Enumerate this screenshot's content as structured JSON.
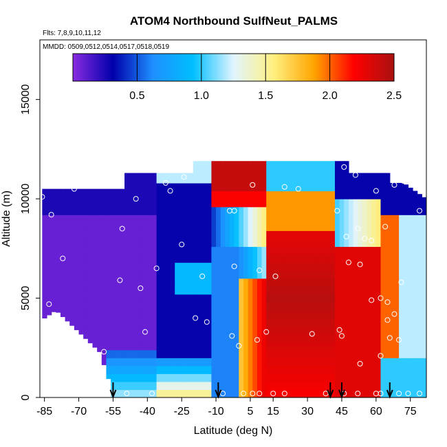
{
  "chart_data": {
    "type": "heatmap",
    "title": "ATOM4 Northbound SulfNeut_PALMS",
    "notes": [
      "Flts: 7,8,9,10,11,12",
      "MMDD: 0509,0512,0514,0517,0518,0519"
    ],
    "xlabel": "Latitude (deg N)",
    "ylabel": "Altitude (m)",
    "xlim": [
      -87,
      82
    ],
    "ylim": [
      0,
      18000
    ],
    "x_ticks": [
      -85,
      -70,
      -55,
      -40,
      -25,
      -10,
      5,
      15,
      30,
      45,
      60,
      75
    ],
    "y_ticks": [
      0,
      5000,
      10000,
      15000
    ],
    "colorbar": {
      "min": 0,
      "max": 2.5,
      "ticks": [
        0.5,
        1.0,
        1.5,
        2.0,
        2.5
      ],
      "tick_labels": [
        "0.5",
        "1.0",
        "1.5",
        "2.0",
        "2.5"
      ],
      "colors": [
        "#8a2be2",
        "#0000aa",
        "#1e90ff",
        "#00bfff",
        "#e0f4ff",
        "#fff080",
        "#ffa500",
        "#ff0000",
        "#aa1111"
      ]
    },
    "profile_markers": [
      -55,
      -9,
      40,
      45,
      66
    ],
    "sample_points": [
      {
        "lat": -86,
        "alt": 10100
      },
      {
        "lat": -82,
        "alt": 9200
      },
      {
        "lat": -77,
        "alt": 7000
      },
      {
        "lat": -83,
        "alt": 4700
      },
      {
        "lat": -72,
        "alt": 10500
      },
      {
        "lat": -59,
        "alt": 2300
      },
      {
        "lat": -52,
        "alt": 5900
      },
      {
        "lat": -51,
        "alt": 8500
      },
      {
        "lat": -45,
        "alt": 10000
      },
      {
        "lat": -43,
        "alt": 5500
      },
      {
        "lat": -41,
        "alt": 3300
      },
      {
        "lat": -36,
        "alt": 6500
      },
      {
        "lat": -30,
        "alt": 10400
      },
      {
        "lat": -32,
        "alt": 10800
      },
      {
        "lat": -24,
        "alt": 11100
      },
      {
        "lat": -25,
        "alt": 7700
      },
      {
        "lat": -19,
        "alt": 4000
      },
      {
        "lat": -14,
        "alt": 3800
      },
      {
        "lat": -16,
        "alt": 6100
      },
      {
        "lat": -4,
        "alt": 9400
      },
      {
        "lat": -2,
        "alt": 9400
      },
      {
        "lat": -2,
        "alt": 6600
      },
      {
        "lat": -3,
        "alt": 3100
      },
      {
        "lat": 0,
        "alt": 2600
      },
      {
        "lat": 6,
        "alt": 10700
      },
      {
        "lat": 9,
        "alt": 6400
      },
      {
        "lat": 12,
        "alt": 3300
      },
      {
        "lat": 8,
        "alt": 2900
      },
      {
        "lat": 16,
        "alt": 6100
      },
      {
        "lat": 20,
        "alt": 10600
      },
      {
        "lat": 26,
        "alt": 10500
      },
      {
        "lat": 32,
        "alt": 3200
      },
      {
        "lat": 43,
        "alt": 9400
      },
      {
        "lat": 47,
        "alt": 8100
      },
      {
        "lat": 52,
        "alt": 8500
      },
      {
        "lat": 55,
        "alt": 8000
      },
      {
        "lat": 58,
        "alt": 7900
      },
      {
        "lat": 46,
        "alt": 11600
      },
      {
        "lat": 51,
        "alt": 11200
      },
      {
        "lat": 60,
        "alt": 10400
      },
      {
        "lat": 68,
        "alt": 10700
      },
      {
        "lat": 72,
        "alt": 10900
      },
      {
        "lat": 79,
        "alt": 9400
      },
      {
        "lat": 64,
        "alt": 8600
      },
      {
        "lat": 48,
        "alt": 6800
      },
      {
        "lat": 53,
        "alt": 6700
      },
      {
        "lat": 58,
        "alt": 4900
      },
      {
        "lat": 62,
        "alt": 5000
      },
      {
        "lat": 65,
        "alt": 4800
      },
      {
        "lat": 71,
        "alt": 5800
      },
      {
        "lat": 68,
        "alt": 4200
      },
      {
        "lat": 65,
        "alt": 3900
      },
      {
        "lat": 66,
        "alt": 3000
      },
      {
        "lat": 70,
        "alt": 2900
      },
      {
        "lat": 44,
        "alt": 3400
      },
      {
        "lat": 45,
        "alt": 3100
      },
      {
        "lat": 53,
        "alt": 1700
      },
      {
        "lat": 62,
        "alt": 2100
      },
      {
        "lat": -38,
        "alt": 200
      },
      {
        "lat": -49,
        "alt": 200
      },
      {
        "lat": -7,
        "alt": 200
      },
      {
        "lat": 2,
        "alt": 200
      },
      {
        "lat": 6,
        "alt": 200
      },
      {
        "lat": 9,
        "alt": 200
      },
      {
        "lat": 15,
        "alt": 200
      },
      {
        "lat": 20,
        "alt": 200
      },
      {
        "lat": 38,
        "alt": 200
      },
      {
        "lat": 46,
        "alt": 200
      },
      {
        "lat": 52,
        "alt": 200
      },
      {
        "lat": 60,
        "alt": 200
      },
      {
        "lat": 62,
        "alt": 200
      },
      {
        "lat": 70,
        "alt": 200
      },
      {
        "lat": 74,
        "alt": 200
      },
      {
        "lat": 79,
        "alt": 200
      }
    ]
  }
}
